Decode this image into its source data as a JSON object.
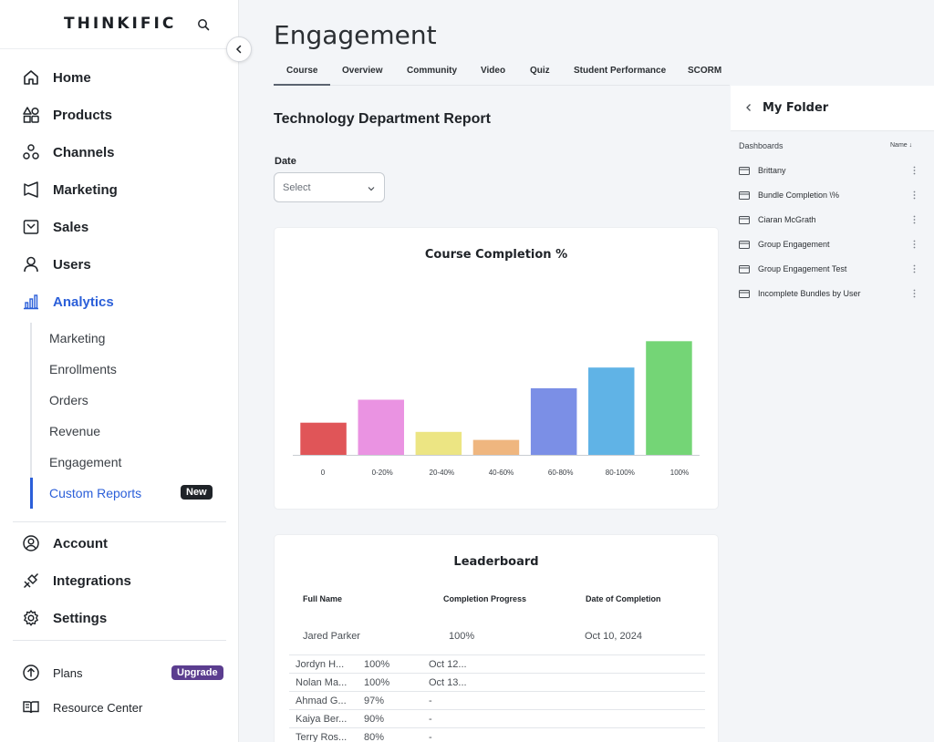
{
  "brand": {
    "name": "THINKIFIC"
  },
  "sidebar": {
    "nav": [
      {
        "label": "Home",
        "icon": "home-icon"
      },
      {
        "label": "Products",
        "icon": "products-icon"
      },
      {
        "label": "Channels",
        "icon": "channels-icon"
      },
      {
        "label": "Marketing",
        "icon": "marketing-icon"
      },
      {
        "label": "Sales",
        "icon": "sales-icon"
      },
      {
        "label": "Users",
        "icon": "users-icon"
      },
      {
        "label": "Analytics",
        "icon": "analytics-icon",
        "active": true
      }
    ],
    "analytics_sub": [
      {
        "label": "Marketing"
      },
      {
        "label": "Enrollments"
      },
      {
        "label": "Orders"
      },
      {
        "label": "Revenue"
      },
      {
        "label": "Engagement"
      },
      {
        "label": "Custom Reports",
        "active": true,
        "badge": "New"
      }
    ],
    "secondary": [
      {
        "label": "Account",
        "icon": "account-icon"
      },
      {
        "label": "Integrations",
        "icon": "integrations-icon"
      },
      {
        "label": "Settings",
        "icon": "settings-icon"
      }
    ],
    "footer": {
      "plans_label": "Plans",
      "upgrade_badge": "Upgrade",
      "resource_center_label": "Resource Center"
    }
  },
  "page": {
    "title": "Engagement",
    "tabs": [
      "Course",
      "Overview",
      "Community",
      "Video",
      "Quiz",
      "Student Performance",
      "SCORM"
    ],
    "active_tab": "Course",
    "report_title": "Technology Department Report",
    "date_filter": {
      "label": "Date",
      "placeholder": "Select"
    }
  },
  "chart_data": {
    "type": "bar",
    "title": "Course Completion %",
    "categories": [
      "0",
      "0-20%",
      "20-40%",
      "40-60%",
      "60-80%",
      "80-100%",
      "100%"
    ],
    "values": [
      28,
      48,
      20,
      13,
      58,
      76,
      99
    ],
    "colors": [
      "#e05558",
      "#ea93e2",
      "#ece583",
      "#efb67f",
      "#7b8fe6",
      "#60b3e6",
      "#74d576"
    ],
    "ylim": [
      0,
      100
    ],
    "grid": false,
    "legend": "none"
  },
  "leaderboard": {
    "title": "Leaderboard",
    "columns": [
      "Full Name",
      "Completion Progress",
      "Date of Completion"
    ],
    "top": {
      "name": "Jared Parker",
      "progress": "100%",
      "date": "Oct 10, 2024"
    },
    "rows": [
      {
        "name": "Jordyn H...",
        "progress": "100%",
        "date": "Oct 12..."
      },
      {
        "name": "Nolan Ma...",
        "progress": "100%",
        "date": "Oct 13..."
      },
      {
        "name": "Ahmad G...",
        "progress": "97%",
        "date": "-"
      },
      {
        "name": "Kaiya Ber...",
        "progress": "90%",
        "date": "-"
      },
      {
        "name": "Terry Ros...",
        "progress": "80%",
        "date": "-"
      }
    ]
  },
  "folder": {
    "title": "My Folder",
    "section_label": "Dashboards",
    "sort_label": "Name ↓",
    "items": [
      {
        "label": "Brittany"
      },
      {
        "label": "Bundle Completion \\%"
      },
      {
        "label": "Ciaran McGrath"
      },
      {
        "label": "Group Engagement"
      },
      {
        "label": "Group Engagement Test"
      },
      {
        "label": "Incomplete Bundles by User"
      }
    ]
  }
}
